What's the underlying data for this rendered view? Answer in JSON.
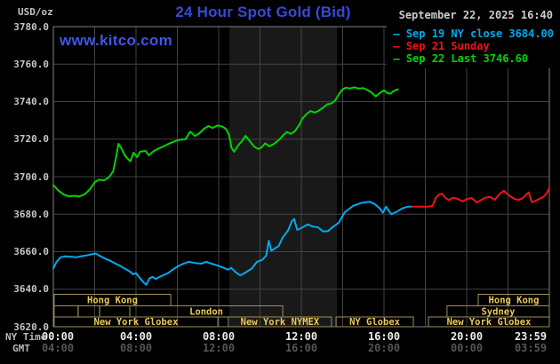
{
  "header": {
    "title": "24 Hour Spot Gold (Bid)",
    "datetime": "September 22, 2025 16:40",
    "unit_label": "USD/oz",
    "watermark": "www.kitco.com"
  },
  "colors": {
    "background": "#000000",
    "title_blue": "#3949d6",
    "link_blue": "#3e57e6",
    "date_gray": "#cccccc",
    "grid": "#424242",
    "plot_border": "#7f7f7f",
    "nymex_band": "#191919",
    "session_border": "#9e9255",
    "session_text": "#e9c85e",
    "series_cyan": "#00aaee",
    "series_red": "#ee1414",
    "series_green": "#00d400"
  },
  "legend": [
    {
      "marker": "–",
      "label": "Sep 19 NY close 3684.00",
      "color": "#00aaee"
    },
    {
      "marker": "–",
      "label": "Sep 21 Sunday",
      "color": "#ee1414"
    },
    {
      "marker": "–",
      "label": "Sep 22 Last 3746.60",
      "color": "#00d400"
    }
  ],
  "axis": {
    "ny_time_label": "NY Time",
    "gmt_label": "GMT",
    "x_ticks_ny": [
      "00:00",
      "04:00",
      "08:00",
      "12:00",
      "16:00",
      "20:00",
      "23:59"
    ],
    "x_ticks_gmt": [
      "04:00",
      "08:00",
      "12:00",
      "16:00",
      "20:00",
      "00:00",
      "03:59"
    ],
    "y_ticks": [
      "3780.0",
      "3760.0",
      "3740.0",
      "3720.0",
      "3700.0",
      "3680.0",
      "3660.0",
      "3640.0",
      "3620.0"
    ]
  },
  "sessions": [
    {
      "row": 0,
      "label": "Hong Kong",
      "start": 0.04,
      "end": 5.68
    },
    {
      "row": 0,
      "label": "Hong Kong",
      "start": 20.56,
      "end": 24
    },
    {
      "row": 1,
      "label": "",
      "start": 0.04,
      "end": 1.2
    },
    {
      "row": 1,
      "label": "",
      "start": 1.2,
      "end": 2.24
    },
    {
      "row": 1,
      "label": "",
      "start": 2.24,
      "end": 3.7
    },
    {
      "row": 1,
      "label": "London",
      "start": 3.7,
      "end": 11.1
    },
    {
      "row": 1,
      "label": "Sydney",
      "start": 19.05,
      "end": 24
    },
    {
      "row": 2,
      "label": "New York Globex",
      "start": 0.04,
      "end": 7.96
    },
    {
      "row": 2,
      "label": "New York NYMEX",
      "start": 8.47,
      "end": 13.46
    },
    {
      "row": 2,
      "label": "NY Globex",
      "start": 13.68,
      "end": 17.42
    },
    {
      "row": 2,
      "label": "New York Globex",
      "start": 18.15,
      "end": 24
    }
  ],
  "chart_data": {
    "type": "line",
    "title": "24 Hour Spot Gold (Bid)",
    "xlabel": "NY Time (hours 00:00-23:59)",
    "ylabel": "USD/oz",
    "x_axis": {
      "range_hours": [
        0,
        24
      ],
      "gridline_every_hours": 2,
      "tick_every_hours": 4
    },
    "y_axis": {
      "range": [
        3620,
        3780
      ],
      "gridline_step": 20
    },
    "grid": true,
    "legend_position": "top-right",
    "nymex_band_hours": [
      8.52,
      13.72
    ],
    "series": [
      {
        "id": "sep19",
        "name": "Sep 19 NY close 3684.00",
        "color": "#00aaee",
        "points": [
          [
            0,
            3651
          ],
          [
            0.15,
            3654.5
          ],
          [
            0.35,
            3657
          ],
          [
            0.6,
            3657.6
          ],
          [
            0.85,
            3657.3
          ],
          [
            1.1,
            3657
          ],
          [
            1.35,
            3657.6
          ],
          [
            1.6,
            3658
          ],
          [
            1.85,
            3658.6
          ],
          [
            2.05,
            3659
          ],
          [
            2.2,
            3658
          ],
          [
            2.45,
            3656.6
          ],
          [
            2.7,
            3655.4
          ],
          [
            2.95,
            3654
          ],
          [
            3.2,
            3652.6
          ],
          [
            3.45,
            3651
          ],
          [
            3.7,
            3649.5
          ],
          [
            3.85,
            3648
          ],
          [
            4.0,
            3648.6
          ],
          [
            4.15,
            3646.4
          ],
          [
            4.35,
            3643.8
          ],
          [
            4.5,
            3642.4
          ],
          [
            4.65,
            3645.8
          ],
          [
            4.8,
            3646.6
          ],
          [
            4.95,
            3645.4
          ],
          [
            5.15,
            3646.6
          ],
          [
            5.35,
            3647.6
          ],
          [
            5.55,
            3648.6
          ],
          [
            5.8,
            3650.6
          ],
          [
            6.0,
            3652
          ],
          [
            6.25,
            3653.4
          ],
          [
            6.55,
            3654.6
          ],
          [
            6.85,
            3654
          ],
          [
            7.15,
            3653.6
          ],
          [
            7.4,
            3654.6
          ],
          [
            7.65,
            3653.6
          ],
          [
            7.95,
            3652.6
          ],
          [
            8.25,
            3651.4
          ],
          [
            8.45,
            3650.4
          ],
          [
            8.6,
            3651.4
          ],
          [
            8.85,
            3648.8
          ],
          [
            9.05,
            3647.4
          ],
          [
            9.25,
            3648.6
          ],
          [
            9.6,
            3651
          ],
          [
            9.85,
            3654.6
          ],
          [
            10.1,
            3655.6
          ],
          [
            10.3,
            3657.8
          ],
          [
            10.42,
            3665.8
          ],
          [
            10.55,
            3660.5
          ],
          [
            10.7,
            3661.6
          ],
          [
            10.9,
            3663
          ],
          [
            11.1,
            3667.6
          ],
          [
            11.35,
            3671.2
          ],
          [
            11.55,
            3676.4
          ],
          [
            11.65,
            3677.4
          ],
          [
            11.8,
            3671.6
          ],
          [
            12.0,
            3672.6
          ],
          [
            12.3,
            3674.6
          ],
          [
            12.55,
            3673.4
          ],
          [
            12.8,
            3673
          ],
          [
            13.05,
            3670.8
          ],
          [
            13.3,
            3671
          ],
          [
            13.5,
            3673
          ],
          [
            13.8,
            3675.4
          ],
          [
            14.1,
            3681
          ],
          [
            14.5,
            3684.4
          ],
          [
            14.9,
            3686
          ],
          [
            15.3,
            3686.6
          ],
          [
            15.55,
            3685.4
          ],
          [
            15.8,
            3683
          ],
          [
            15.95,
            3680.8
          ],
          [
            16.1,
            3684
          ],
          [
            16.35,
            3680
          ],
          [
            16.6,
            3681.2
          ],
          [
            16.9,
            3683.2
          ],
          [
            17.15,
            3684
          ],
          [
            17.35,
            3684
          ]
        ]
      },
      {
        "id": "sep21",
        "name": "Sep 21 Sunday",
        "color": "#ee1414",
        "points": [
          [
            17.35,
            3684
          ],
          [
            17.7,
            3684
          ],
          [
            18.1,
            3684
          ],
          [
            18.35,
            3684.4
          ],
          [
            18.5,
            3688.6
          ],
          [
            18.65,
            3690.4
          ],
          [
            18.8,
            3691
          ],
          [
            19.0,
            3688.4
          ],
          [
            19.15,
            3687.6
          ],
          [
            19.35,
            3688.8
          ],
          [
            19.55,
            3688.2
          ],
          [
            19.8,
            3686.8
          ],
          [
            20.05,
            3688.2
          ],
          [
            20.25,
            3688.6
          ],
          [
            20.5,
            3686.2
          ],
          [
            20.7,
            3687.6
          ],
          [
            20.9,
            3688.8
          ],
          [
            21.15,
            3689.2
          ],
          [
            21.35,
            3687.6
          ],
          [
            21.6,
            3690.8
          ],
          [
            21.8,
            3692.5
          ],
          [
            21.95,
            3691
          ],
          [
            22.1,
            3689.6
          ],
          [
            22.3,
            3688.2
          ],
          [
            22.5,
            3687.6
          ],
          [
            22.7,
            3688.4
          ],
          [
            22.85,
            3690.2
          ],
          [
            23.0,
            3691.6
          ],
          [
            23.15,
            3686.4
          ],
          [
            23.3,
            3687
          ],
          [
            23.45,
            3687.8
          ],
          [
            23.6,
            3688.6
          ],
          [
            23.75,
            3689.6
          ],
          [
            23.88,
            3691.2
          ],
          [
            24.0,
            3694
          ]
        ]
      },
      {
        "id": "sep22",
        "name": "Sep 22 Last 3746.60",
        "color": "#00d400",
        "points": [
          [
            0,
            3695.5
          ],
          [
            0.25,
            3692.5
          ],
          [
            0.5,
            3690.5
          ],
          [
            0.75,
            3689.5
          ],
          [
            1.0,
            3689.8
          ],
          [
            1.25,
            3689.4
          ],
          [
            1.5,
            3690.5
          ],
          [
            1.75,
            3693
          ],
          [
            2.0,
            3697
          ],
          [
            2.2,
            3698.4
          ],
          [
            2.45,
            3698
          ],
          [
            2.7,
            3699.8
          ],
          [
            2.9,
            3703
          ],
          [
            3.05,
            3711
          ],
          [
            3.15,
            3717.5
          ],
          [
            3.3,
            3715
          ],
          [
            3.45,
            3711.5
          ],
          [
            3.6,
            3709.5
          ],
          [
            3.73,
            3708.2
          ],
          [
            3.88,
            3712.8
          ],
          [
            4.05,
            3710.4
          ],
          [
            4.2,
            3713.3
          ],
          [
            4.45,
            3713.8
          ],
          [
            4.62,
            3711.4
          ],
          [
            4.85,
            3713.6
          ],
          [
            5.05,
            3714.8
          ],
          [
            5.3,
            3716
          ],
          [
            5.6,
            3717.6
          ],
          [
            5.85,
            3718.8
          ],
          [
            6.1,
            3719.7
          ],
          [
            6.4,
            3720
          ],
          [
            6.62,
            3724
          ],
          [
            6.85,
            3721.7
          ],
          [
            7.05,
            3723
          ],
          [
            7.3,
            3725.6
          ],
          [
            7.5,
            3727
          ],
          [
            7.7,
            3726
          ],
          [
            7.95,
            3727.3
          ],
          [
            8.2,
            3726.6
          ],
          [
            8.35,
            3725.4
          ],
          [
            8.5,
            3722.5
          ],
          [
            8.62,
            3715.5
          ],
          [
            8.75,
            3713.3
          ],
          [
            8.95,
            3716.8
          ],
          [
            9.15,
            3719.2
          ],
          [
            9.3,
            3721.8
          ],
          [
            9.5,
            3719
          ],
          [
            9.7,
            3716.2
          ],
          [
            9.9,
            3714.8
          ],
          [
            10.05,
            3715.4
          ],
          [
            10.25,
            3717.8
          ],
          [
            10.45,
            3716.2
          ],
          [
            10.7,
            3717.6
          ],
          [
            10.95,
            3720
          ],
          [
            11.15,
            3722.4
          ],
          [
            11.3,
            3723.8
          ],
          [
            11.5,
            3722.8
          ],
          [
            11.7,
            3724.4
          ],
          [
            11.9,
            3727.6
          ],
          [
            12.05,
            3731
          ],
          [
            12.25,
            3733.4
          ],
          [
            12.45,
            3735
          ],
          [
            12.65,
            3734.2
          ],
          [
            12.85,
            3735.2
          ],
          [
            13.05,
            3736.8
          ],
          [
            13.25,
            3738.6
          ],
          [
            13.45,
            3739
          ],
          [
            13.65,
            3740.8
          ],
          [
            13.82,
            3744
          ],
          [
            13.98,
            3746.4
          ],
          [
            14.15,
            3747.5
          ],
          [
            14.35,
            3747
          ],
          [
            14.55,
            3747.6
          ],
          [
            14.78,
            3747
          ],
          [
            15.0,
            3747.2
          ],
          [
            15.2,
            3746.2
          ],
          [
            15.4,
            3744.8
          ],
          [
            15.6,
            3742.8
          ],
          [
            15.82,
            3744.8
          ],
          [
            16.0,
            3746
          ],
          [
            16.15,
            3744.6
          ],
          [
            16.3,
            3744.2
          ],
          [
            16.48,
            3745.8
          ],
          [
            16.67,
            3746.6
          ]
        ]
      }
    ]
  }
}
